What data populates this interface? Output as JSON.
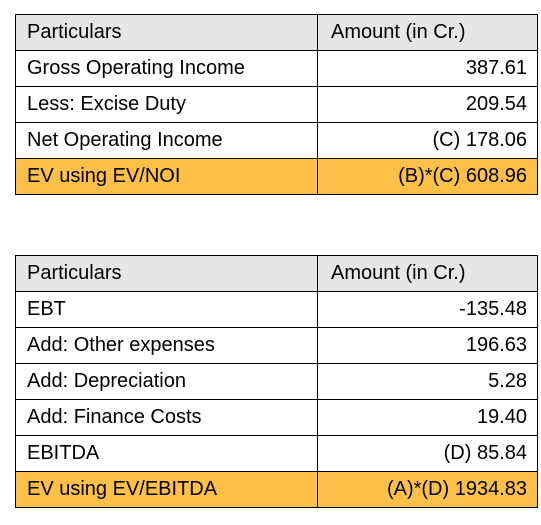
{
  "colors": {
    "header_background": "#e6e6e6",
    "highlight_row": "#ffc04a",
    "border": "#000000"
  },
  "table_noi": {
    "headers": [
      "Particulars",
      "Amount (in Cr.)"
    ],
    "rows": [
      {
        "label": "Gross Operating Income",
        "amount": "387.61"
      },
      {
        "label": "Less: Excise Duty",
        "amount": "209.54"
      },
      {
        "label": "Net Operating Income",
        "amount": "(C) 178.06"
      }
    ],
    "total": {
      "label": "EV using EV/NOI",
      "amount": "(B)*(C) 608.96"
    }
  },
  "table_ebitda": {
    "headers": [
      "Particulars",
      "Amount (in Cr.)"
    ],
    "rows": [
      {
        "label": "EBT",
        "amount": "-135.48"
      },
      {
        "label": "Add: Other expenses",
        "amount": "196.63"
      },
      {
        "label": "Add: Depreciation",
        "amount": "5.28"
      },
      {
        "label": "Add: Finance Costs",
        "amount": "19.40"
      },
      {
        "label": "EBITDA",
        "amount": "(D) 85.84"
      }
    ],
    "total": {
      "label": "EV using EV/EBITDA",
      "amount": "(A)*(D) 1934.83"
    }
  }
}
